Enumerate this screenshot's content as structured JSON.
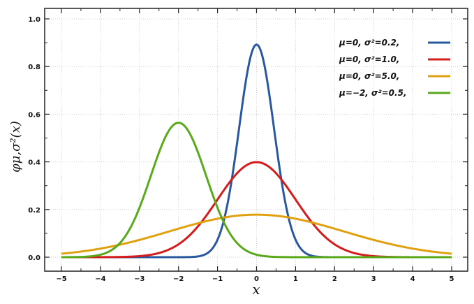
{
  "chart_data": {
    "type": "line",
    "xlabel": "x",
    "ylabel": "φμ,σ²(x)",
    "xlim": [
      -5,
      5
    ],
    "ylim": [
      0,
      1.0
    ],
    "x_ticks": [
      "−5",
      "−4",
      "−3",
      "−2",
      "−1",
      "0",
      "1",
      "2",
      "3",
      "4",
      "5"
    ],
    "y_ticks": [
      "0.0",
      "0.2",
      "0.4",
      "0.6",
      "0.8",
      "1.0"
    ],
    "grid": true,
    "legend_position": "top-right",
    "series": [
      {
        "name": "μ=0,   σ²=0.2,",
        "mu": 0,
        "sigma2": 0.2,
        "color": "#2a58a0"
      },
      {
        "name": "μ=0,   σ²=1.0,",
        "mu": 0,
        "sigma2": 1.0,
        "color": "#d41c1c"
      },
      {
        "name": "μ=0,   σ²=5.0,",
        "mu": 0,
        "sigma2": 5.0,
        "color": "#e0a010"
      },
      {
        "name": "μ=−2, σ²=0.5,",
        "mu": -2,
        "sigma2": 0.5,
        "color": "#58aa1c"
      }
    ]
  }
}
